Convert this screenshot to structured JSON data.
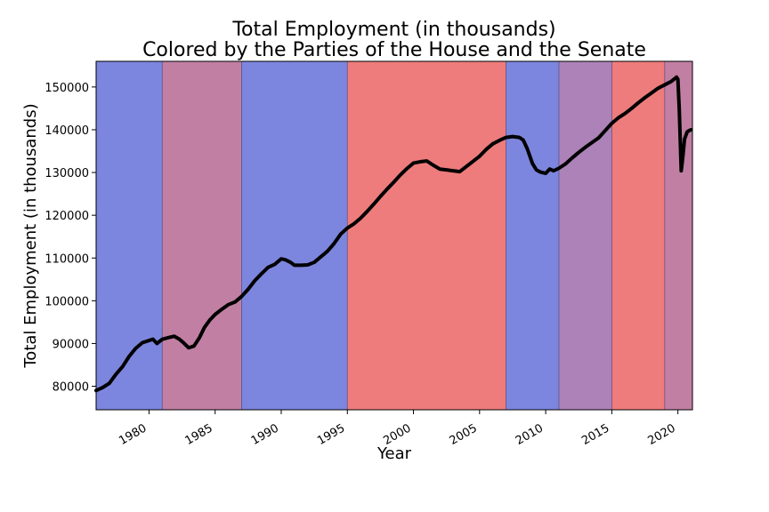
{
  "chart_data": {
    "type": "line",
    "title_line1": "Total Employment (in thousands)",
    "title_line2": "Colored by the Parties of the House and the Senate",
    "xlabel": "Year",
    "ylabel": "Total Employment (in thousands)",
    "xlim": [
      1976,
      2021.1
    ],
    "ylim": [
      74500,
      156000
    ],
    "x_ticks": [
      1980,
      1985,
      1990,
      1995,
      2000,
      2005,
      2010,
      2015,
      2020
    ],
    "y_ticks": [
      80000,
      90000,
      100000,
      110000,
      120000,
      130000,
      140000,
      150000
    ],
    "regions": [
      {
        "start": 1976,
        "end": 1981,
        "color": "#7d86de"
      },
      {
        "start": 1981,
        "end": 1987,
        "color": "#c17fa3"
      },
      {
        "start": 1987,
        "end": 1995,
        "color": "#7d86de"
      },
      {
        "start": 1995,
        "end": 2007,
        "color": "#ee7c7c"
      },
      {
        "start": 2007,
        "end": 2011,
        "color": "#7d86de"
      },
      {
        "start": 2011,
        "end": 2015,
        "color": "#ac82b8"
      },
      {
        "start": 2015,
        "end": 2019,
        "color": "#ee7c7c"
      },
      {
        "start": 2019,
        "end": 2021.1,
        "color": "#c17fa3"
      }
    ],
    "line_color": "#000000",
    "series": [
      {
        "x": [
          1976.0,
          1976.5,
          1977.0,
          1977.5,
          1978.0,
          1978.5,
          1979.0,
          1979.5,
          1980.0,
          1980.3,
          1980.6,
          1981.0,
          1981.5,
          1981.9,
          1982.3,
          1982.6,
          1983.0,
          1983.4,
          1983.8,
          1984.2,
          1984.6,
          1985.0,
          1985.5,
          1986.0,
          1986.5,
          1987.0,
          1987.5,
          1988.0,
          1988.5,
          1989.0,
          1989.5,
          1990.0,
          1990.3,
          1990.7,
          1991.0,
          1991.5,
          1992.0,
          1992.5,
          1993.0,
          1993.5,
          1994.0,
          1994.5,
          1995.0,
          1995.5,
          1996.0,
          1996.5,
          1997.0,
          1997.5,
          1998.0,
          1998.5,
          1999.0,
          1999.5,
          2000.0,
          2000.5,
          2001.0,
          2001.5,
          2002.0,
          2002.5,
          2003.0,
          2003.5,
          2004.0,
          2004.5,
          2005.0,
          2005.5,
          2006.0,
          2006.5,
          2007.0,
          2007.5,
          2008.0,
          2008.3,
          2008.6,
          2009.0,
          2009.3,
          2009.6,
          2010.0,
          2010.3,
          2010.6,
          2011.0,
          2011.5,
          2012.0,
          2012.5,
          2013.0,
          2013.5,
          2014.0,
          2014.5,
          2015.0,
          2015.5,
          2016.0,
          2016.5,
          2017.0,
          2017.5,
          2018.0,
          2018.5,
          2019.0,
          2019.5,
          2019.9,
          2020.0,
          2020.1,
          2020.25,
          2020.35,
          2020.5,
          2020.7,
          2020.85,
          2021.0
        ],
        "y": [
          79000,
          79700,
          80700,
          82800,
          84600,
          87000,
          88900,
          90200,
          90700,
          91000,
          90000,
          91000,
          91400,
          91700,
          91000,
          90200,
          89000,
          89400,
          91300,
          93800,
          95500,
          96800,
          98000,
          99100,
          99700,
          101000,
          102700,
          104700,
          106300,
          107800,
          108500,
          109800,
          109600,
          109000,
          108300,
          108300,
          108400,
          109000,
          110300,
          111600,
          113400,
          115600,
          117000,
          118000,
          119300,
          120900,
          122600,
          124400,
          126100,
          127700,
          129400,
          130900,
          132200,
          132500,
          132700,
          131700,
          130800,
          130600,
          130400,
          130200,
          131400,
          132600,
          133800,
          135400,
          136700,
          137500,
          138200,
          138400,
          138200,
          137600,
          135600,
          132100,
          130600,
          130100,
          129800,
          130800,
          130400,
          131000,
          132000,
          133400,
          134700,
          135900,
          137000,
          138100,
          139800,
          141500,
          142800,
          143800,
          145000,
          146300,
          147500,
          148600,
          149700,
          150500,
          151300,
          152300,
          151800,
          145000,
          130400,
          133000,
          137800,
          139500,
          139800,
          140000
        ]
      }
    ]
  }
}
